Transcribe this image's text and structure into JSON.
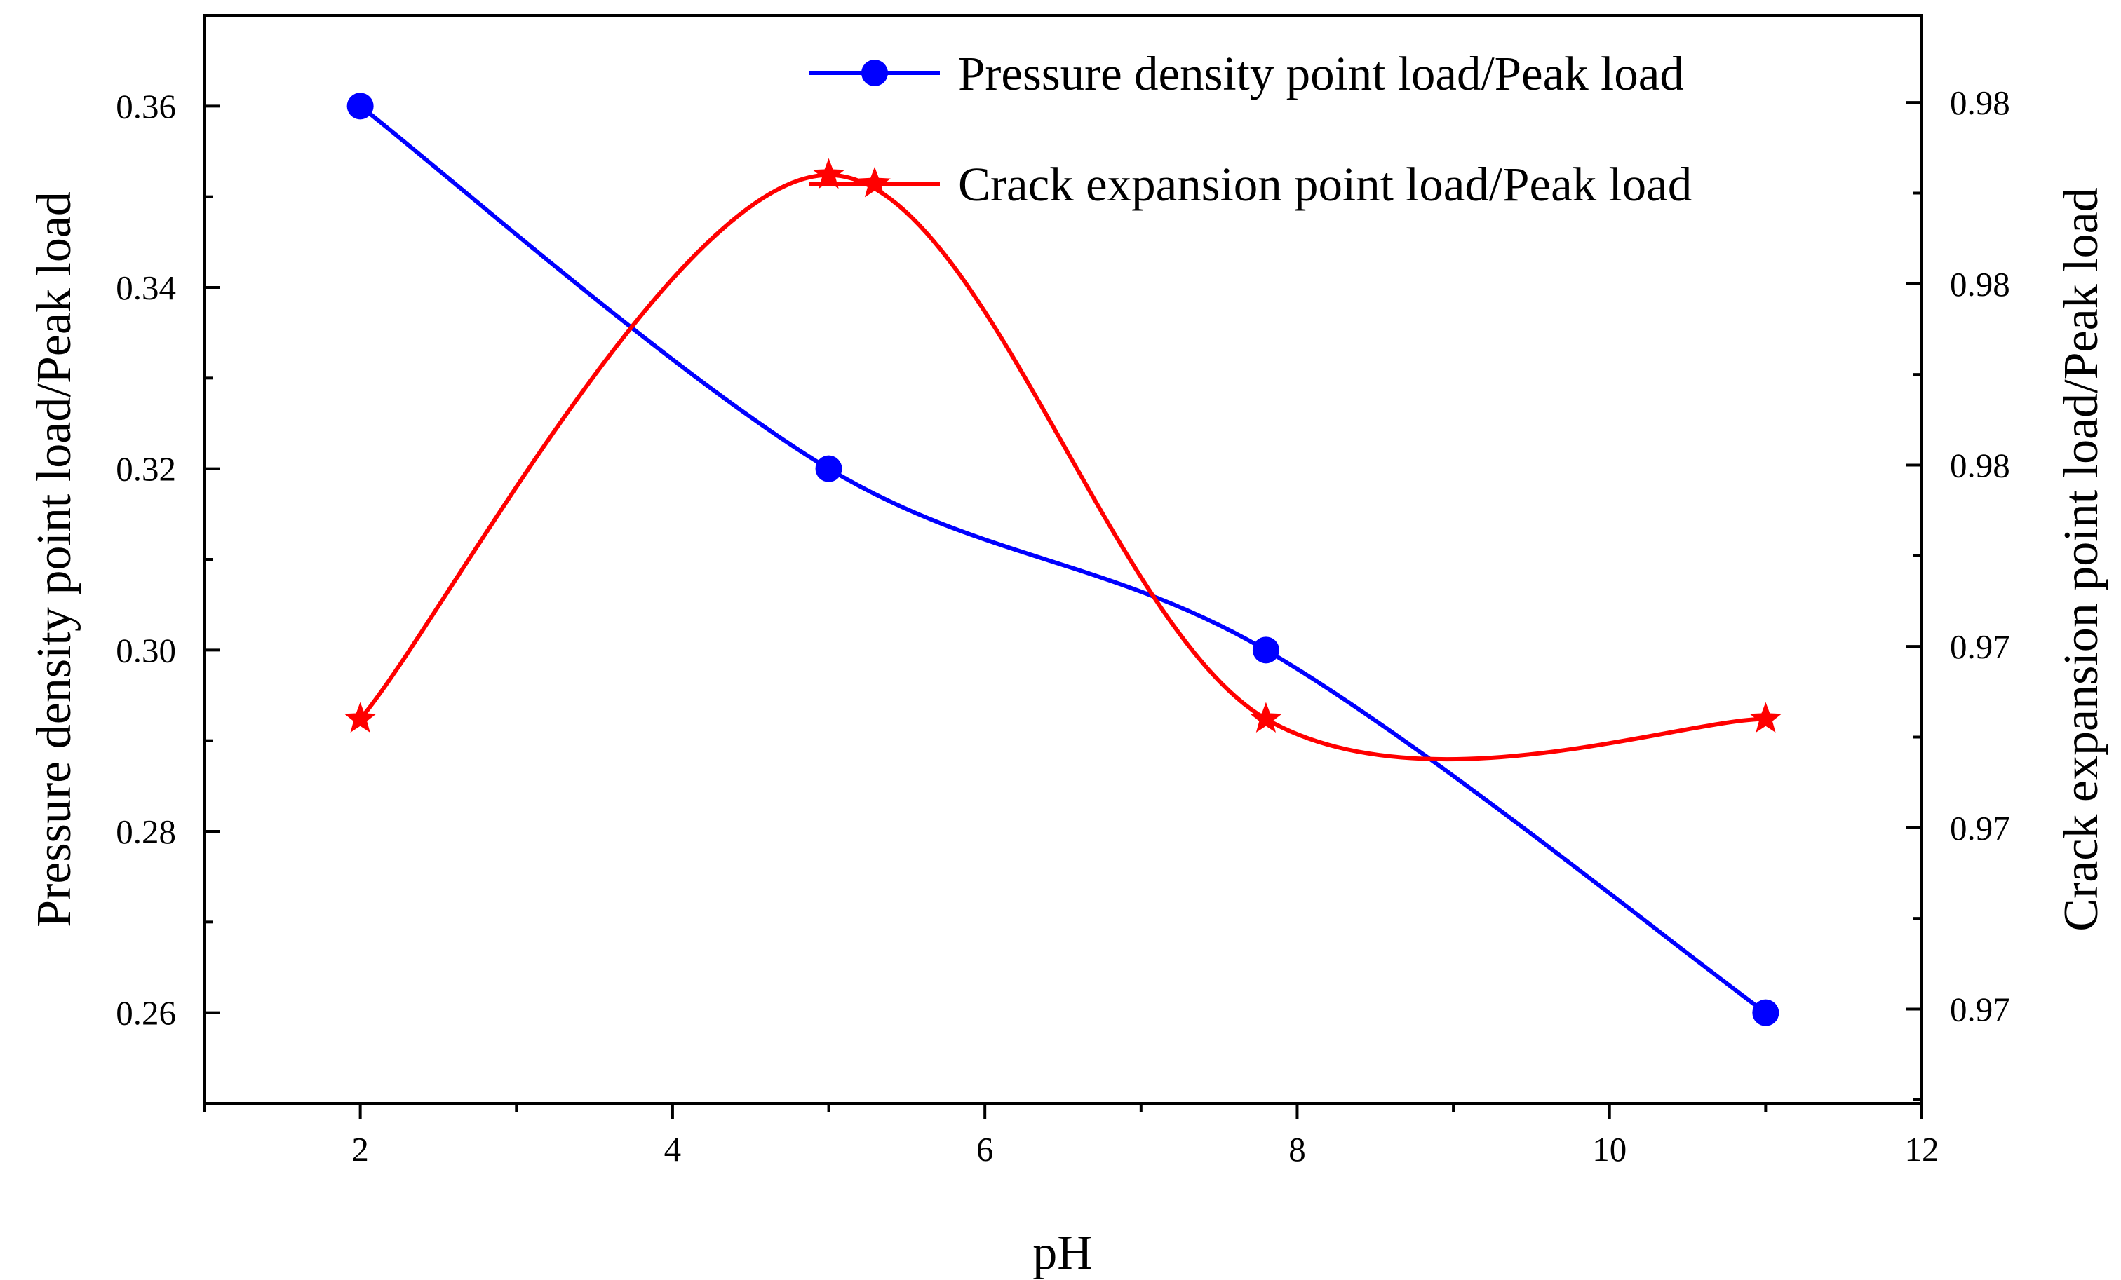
{
  "chart_data": {
    "type": "line",
    "title": "",
    "xlabel": "pH",
    "ylabel_left": "Pressure density point load/Peak load",
    "ylabel_right": "Crack expansion point load/Peak load",
    "x": [
      2,
      5,
      7.8,
      11
    ],
    "xlim": [
      1,
      12
    ],
    "xticks": [
      2,
      4,
      6,
      8,
      10,
      12
    ],
    "xtick_labels": [
      "2",
      "4",
      "6",
      "8",
      "10",
      "12"
    ],
    "ylim_left": [
      0.25,
      0.37
    ],
    "yticks_left": [
      0.26,
      0.28,
      0.3,
      0.32,
      0.34,
      0.36
    ],
    "ytick_labels_left": [
      "0.26",
      "0.28",
      "0.30",
      "0.32",
      "0.34",
      "0.36"
    ],
    "ylim_right": [
      0.9662,
      0.9812
    ],
    "yticks_right": [
      0.9675,
      0.97,
      0.9725,
      0.975,
      0.9775,
      0.98
    ],
    "ytick_labels_right": [
      "0.97",
      "0.97",
      "0.97",
      "0.98",
      "0.98",
      "0.98"
    ],
    "grid": false,
    "legend_position": "top-right",
    "series": [
      {
        "name": "Pressure density point load/Peak load",
        "axis": "left",
        "color": "#0000ff",
        "marker": "circle",
        "values": [
          0.36,
          0.32,
          0.3,
          0.26
        ]
      },
      {
        "name": "Crack expansion point load/Peak load",
        "axis": "right",
        "color": "#ff0000",
        "marker": "star",
        "values": [
          0.9715,
          0.979,
          0.9715,
          0.9715
        ]
      }
    ]
  }
}
